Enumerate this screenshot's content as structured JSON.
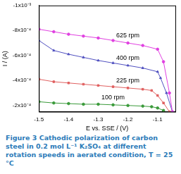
{
  "chart_data": {
    "type": "line",
    "title": "Figure 3 Cathodic polarization of carbon steel in 0.2 mol L⁻¹ K₂SO₄ at different rotation speeds in aerated condition, T = 25 °C",
    "x_label": "E vs. SSE / (V)",
    "y_label": "I / (A)",
    "xlim": [
      -1.5,
      -1.04
    ],
    "xticks": [
      -1.5,
      -1.4,
      -1.3,
      -1.2,
      -1.1
    ],
    "ylim": [
      -0.001,
      -0.00015
    ],
    "yticks": [
      {
        "value": -0.001,
        "label": "-1x10⁻³"
      },
      {
        "value": -0.0008,
        "label": "-8x10⁻⁴"
      },
      {
        "value": -0.0006,
        "label": "-6x10⁻⁴"
      },
      {
        "value": -0.0004,
        "label": "-4x10⁻⁴"
      },
      {
        "value": -0.0002,
        "label": "-2x10⁻⁴"
      }
    ],
    "grid": false,
    "series": [
      {
        "name": "625 rpm",
        "color": "#e040e0",
        "marker": "circle",
        "x": [
          -1.5,
          -1.45,
          -1.4,
          -1.35,
          -1.3,
          -1.25,
          -1.2,
          -1.15,
          -1.1,
          -1.08,
          -1.06,
          -1.05
        ],
        "values": [
          -0.00081,
          -0.00079,
          -0.00077,
          -0.000755,
          -0.00074,
          -0.00072,
          -0.0007,
          -0.00068,
          -0.00065,
          -0.00055,
          -0.0003,
          -0.00015
        ]
      },
      {
        "name": "400 rpm",
        "color": "#5050c0",
        "marker": "triangle",
        "x": [
          -1.5,
          -1.45,
          -1.4,
          -1.35,
          -1.3,
          -1.25,
          -1.2,
          -1.15,
          -1.1,
          -1.09,
          -1.07,
          -1.05
        ],
        "values": [
          -0.00072,
          -0.00064,
          -0.00061,
          -0.000585,
          -0.00056,
          -0.00054,
          -0.00052,
          -0.0005,
          -0.00047,
          -0.00042,
          -0.0003,
          -0.00015
        ]
      },
      {
        "name": "225 rpm",
        "color": "#e06060",
        "marker": "rect",
        "x": [
          -1.5,
          -1.45,
          -1.4,
          -1.35,
          -1.3,
          -1.25,
          -1.2,
          -1.15,
          -1.12,
          -1.1,
          -1.08,
          -1.06
        ],
        "values": [
          -0.00041,
          -0.00039,
          -0.00038,
          -0.00037,
          -0.00036,
          -0.00035,
          -0.00034,
          -0.00033,
          -0.00032,
          -0.00028,
          -0.00022,
          -0.00015
        ]
      },
      {
        "name": "100 rpm",
        "color": "#3a9a3a",
        "marker": "circle",
        "x": [
          -1.5,
          -1.45,
          -1.4,
          -1.35,
          -1.3,
          -1.25,
          -1.2,
          -1.15,
          -1.12,
          -1.1,
          -1.08
        ],
        "values": [
          -0.00023,
          -0.00022,
          -0.000215,
          -0.00021,
          -0.00021,
          -0.000205,
          -0.0002,
          -0.000195,
          -0.00019,
          -0.00018,
          -0.00016
        ]
      }
    ]
  }
}
